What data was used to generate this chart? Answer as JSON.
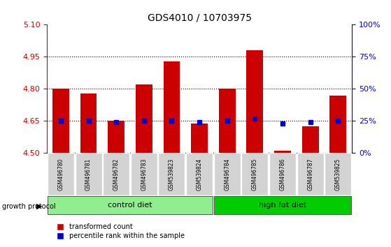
{
  "title": "GDS4010 / 10703975",
  "samples": [
    "GSM496780",
    "GSM496781",
    "GSM496782",
    "GSM496783",
    "GSM539823",
    "GSM539824",
    "GSM496784",
    "GSM496785",
    "GSM496786",
    "GSM496787",
    "GSM539825"
  ],
  "red_values": [
    4.8,
    4.78,
    4.65,
    4.82,
    4.93,
    4.64,
    4.8,
    4.98,
    4.51,
    4.625,
    4.77
  ],
  "blue_values": [
    4.651,
    4.651,
    4.645,
    4.651,
    4.651,
    4.644,
    4.651,
    4.662,
    4.638,
    4.644,
    4.651
  ],
  "ymin": 4.5,
  "ymax": 5.1,
  "yticks_left": [
    4.5,
    4.65,
    4.8,
    4.95,
    5.1
  ],
  "yticks_right": [
    0,
    25,
    50,
    75,
    100
  ],
  "grid_lines": [
    4.65,
    4.8,
    4.95
  ],
  "bar_width": 0.6,
  "bar_color": "#cc0000",
  "dot_color": "#0000cc",
  "bar_base": 4.5,
  "control_diet_count": 6,
  "high_fat_diet_count": 5,
  "control_diet_label": "control diet",
  "high_fat_diet_label": "high fat diet",
  "growth_protocol_label": "growth protocol",
  "legend_red": "transformed count",
  "legend_blue": "percentile rank within the sample",
  "control_color": "#90ee90",
  "high_fat_color": "#00cc00",
  "label_bg_color": "#d3d3d3"
}
